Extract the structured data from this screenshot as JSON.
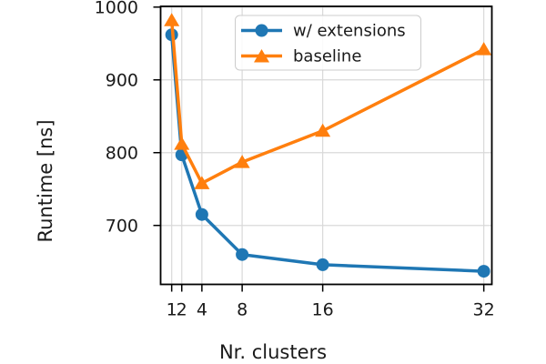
{
  "chart_data": {
    "type": "line",
    "title": "",
    "xlabel": "Nr. clusters",
    "ylabel": "Runtime [ns]",
    "x": [
      1,
      2,
      4,
      8,
      16,
      32
    ],
    "series": [
      {
        "name": "w/ extensions",
        "marker": "circle",
        "color": "#1f77b4",
        "values": [
          962,
          797,
          715,
          660,
          646,
          637
        ]
      },
      {
        "name": "baseline",
        "marker": "triangle",
        "color": "#ff7f0e",
        "values": [
          982,
          812,
          758,
          787,
          830,
          942
        ]
      }
    ],
    "xticks": [
      1,
      2,
      4,
      8,
      16,
      32
    ],
    "xtick_labels": [
      "1",
      "2",
      "4",
      "8",
      "16",
      "32"
    ],
    "yticks": [
      700,
      800,
      900,
      1000
    ],
    "ytick_labels": [
      "700",
      "800",
      "900",
      "1000"
    ],
    "xlim": [
      -0.1,
      32.8
    ],
    "ylim": [
      619,
      1001
    ],
    "grid": true,
    "legend_position": "upper center"
  },
  "colors": {
    "series_blue": "#1f77b4",
    "series_orange": "#ff7f0e",
    "grid": "#d9d9d9",
    "frame": "#000000",
    "text": "#1a1a1a",
    "legend_border": "#cccccc"
  }
}
